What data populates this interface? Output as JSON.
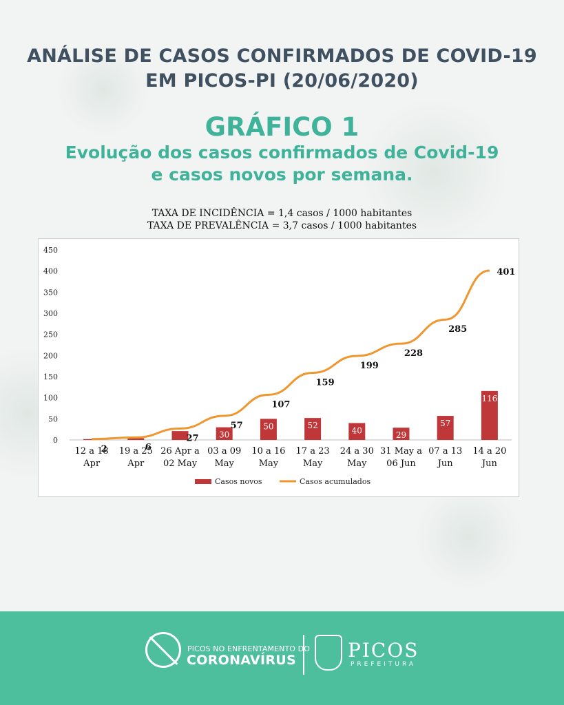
{
  "header": {
    "title_line1": "ANÁLISE DE CASOS CONFIRMADOS DE COVID-19",
    "title_line2": "EM PICOS-PI (20/06/2020)",
    "grafico": "GRÁFICO 1",
    "subtitle_line1": "Evolução dos casos confirmados de Covid-19",
    "subtitle_line2": "e casos novos por semana.",
    "taxa_incidencia": "TAXA DE INCIDÊNCIA = 1,4 casos / 1000 habitantes",
    "taxa_prevalencia": "TAXA DE PREVALÊNCIA = 3,7 casos / 1000 habitantes"
  },
  "chart_data": {
    "type": "bar",
    "categories": [
      [
        "12 a 18",
        "Apr"
      ],
      [
        "19 a 25",
        "Apr"
      ],
      [
        "26 Apr a",
        "02 May"
      ],
      [
        "03 a 09",
        "May"
      ],
      [
        "10 a 16",
        "May"
      ],
      [
        "17 a 23",
        "May"
      ],
      [
        "24 a 30",
        "May"
      ],
      [
        "31 May a",
        "06 Jun"
      ],
      [
        "07 a 13",
        "Jun"
      ],
      [
        "14 a 20",
        "Jun"
      ]
    ],
    "series": [
      {
        "name": "Casos novos",
        "type": "bar",
        "color": "#c0373a",
        "values": [
          2,
          4,
          21,
          30,
          50,
          52,
          40,
          29,
          57,
          116
        ],
        "labels": [
          "",
          "",
          "",
          "30",
          "50",
          "52",
          "40",
          "29",
          "57",
          "116"
        ]
      },
      {
        "name": "Casos acumulados",
        "type": "line",
        "color": "#f0962e",
        "values": [
          2,
          6,
          27,
          57,
          107,
          159,
          199,
          228,
          285,
          401
        ],
        "labels": [
          "2",
          "6",
          "27",
          "57",
          "107",
          "159",
          "199",
          "228",
          "285",
          "401"
        ]
      }
    ],
    "yticks": [
      "0",
      "50",
      "100",
      "150",
      "200",
      "250",
      "300",
      "350",
      "400",
      "450"
    ],
    "ylim": [
      0,
      450
    ],
    "legend_position": "bottom",
    "grid": false
  },
  "footer": {
    "logo_small": "PICOS NO ENFRENTAMENTO DO",
    "logo_big": "CORONAVÍRUS",
    "picos": "PICOS",
    "prefeitura": "PREFEITURA"
  },
  "colors": {
    "title": "#3f5060",
    "accent_green": "#3fb39a",
    "footer_bg": "#4dbf9d",
    "bar": "#c0373a",
    "line": "#f0962e"
  }
}
